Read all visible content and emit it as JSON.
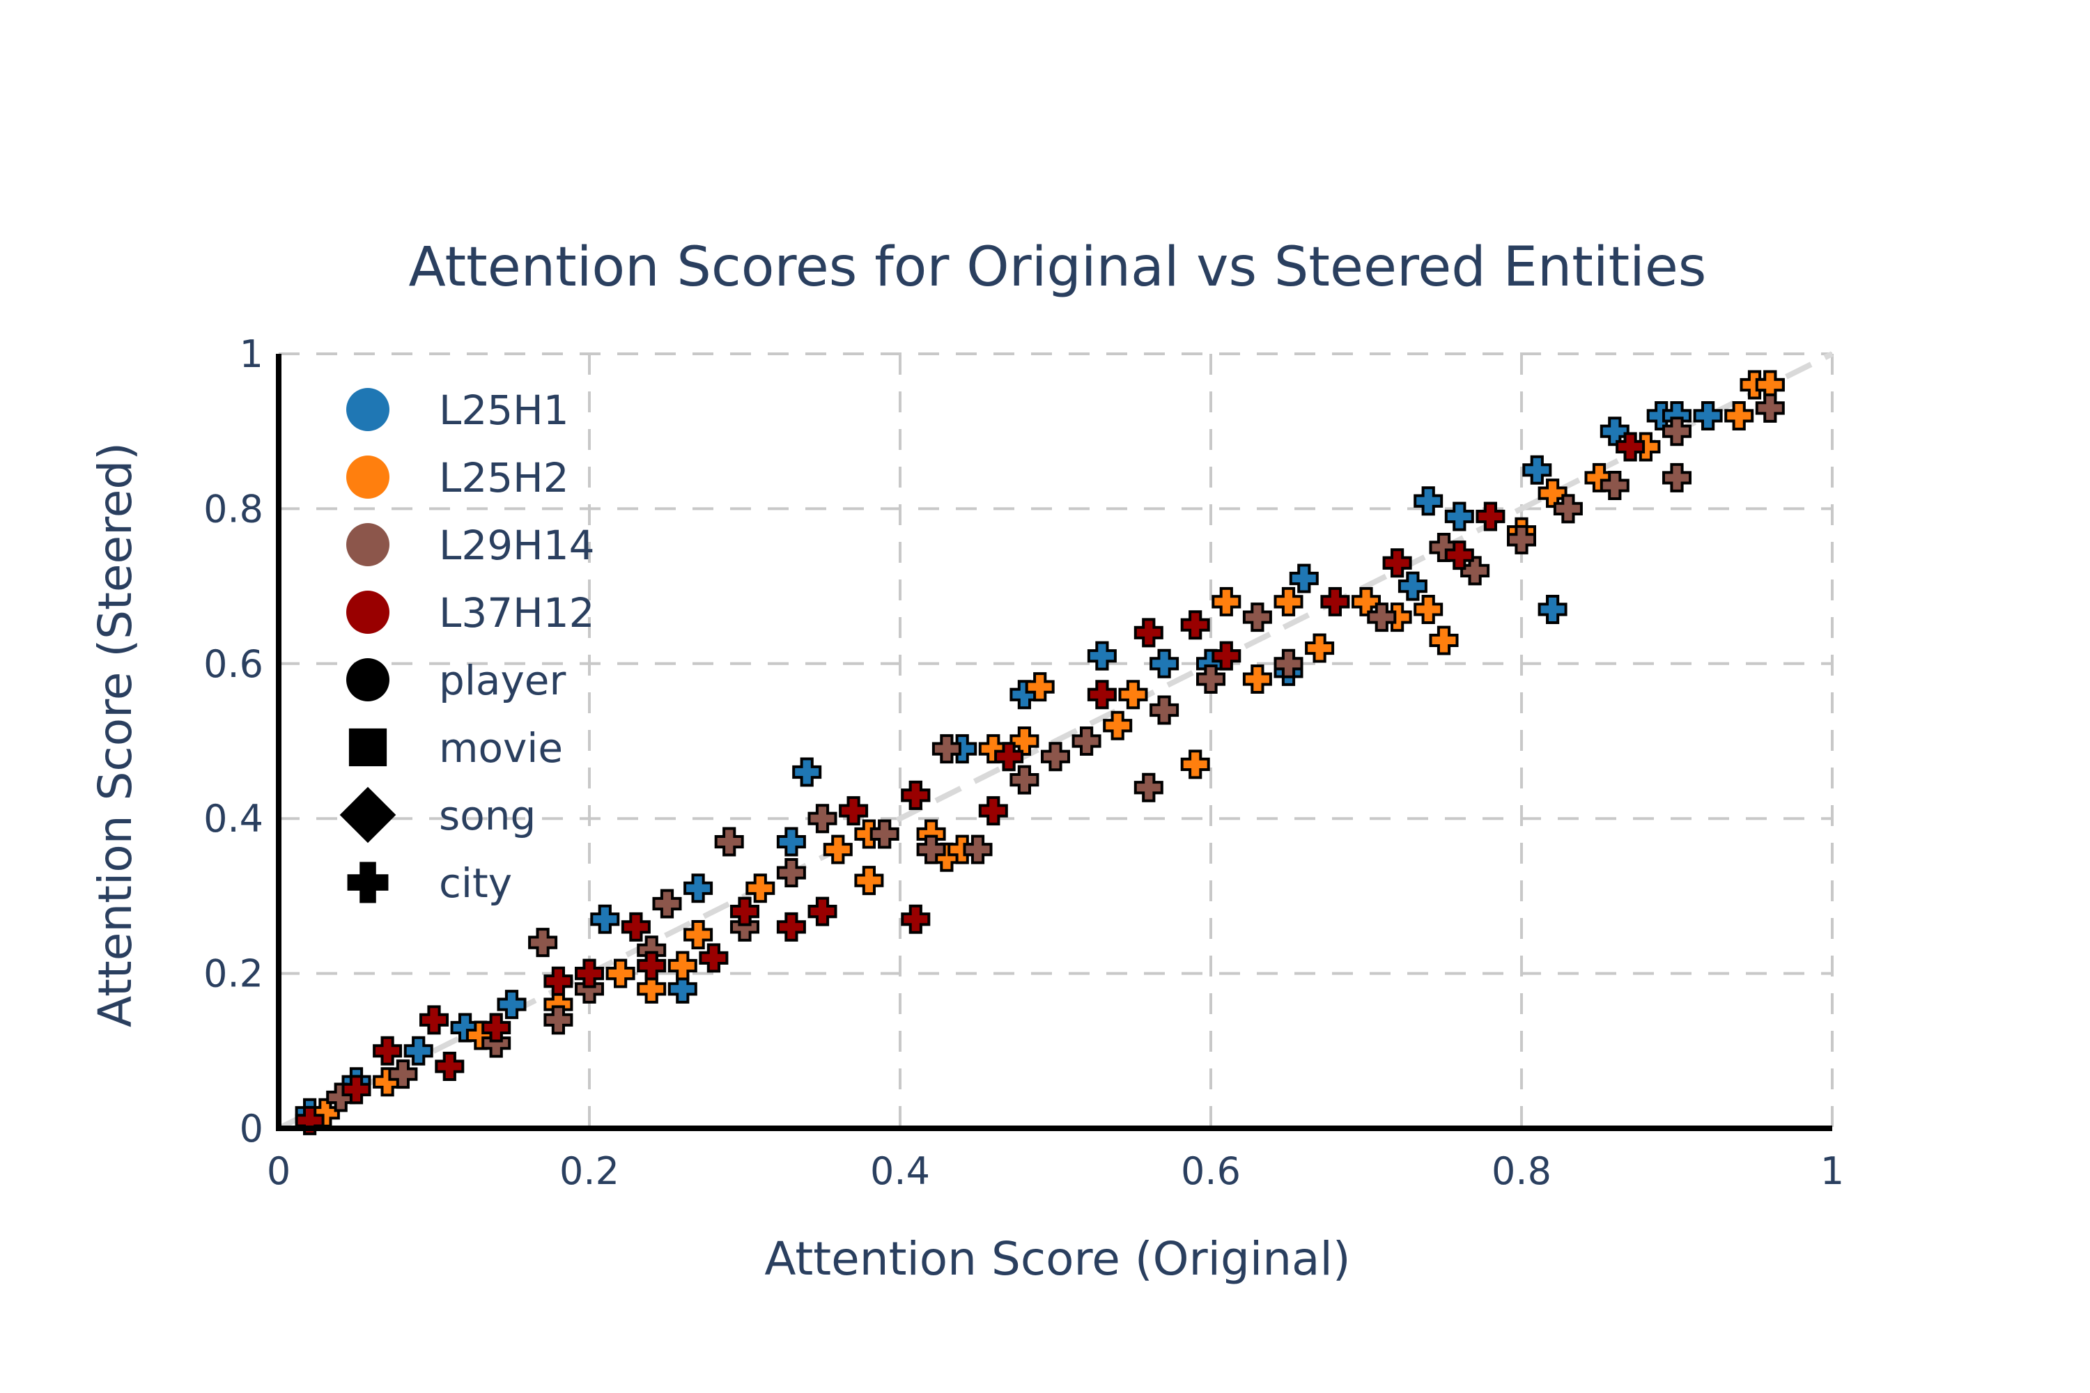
{
  "chart_data": {
    "type": "scatter",
    "title": "Attention Scores for Original vs Steered Entities",
    "xlabel": "Attention Score (Original)",
    "ylabel": "Attention Score (Steered)",
    "xlim": [
      0,
      1
    ],
    "ylim": [
      0,
      1
    ],
    "x_ticks": [
      0,
      0.2,
      0.4,
      0.6,
      0.8,
      1
    ],
    "y_ticks": [
      0,
      0.2,
      0.4,
      0.6,
      0.8,
      1
    ],
    "x_tick_labels": [
      "0",
      "0.2",
      "0.4",
      "0.6",
      "0.8",
      "1"
    ],
    "y_tick_labels": [
      "0",
      "0.2",
      "0.4",
      "0.6",
      "0.8",
      "1"
    ],
    "grid": true,
    "reference_line": {
      "x": [
        0,
        1
      ],
      "y": [
        0,
        1
      ],
      "style": "dashed",
      "color": "#d9d9d9"
    },
    "legend_position": "top-left",
    "colors": {
      "L25H1": "#1f77b4",
      "L25H2": "#ff7f0e",
      "L29H14": "#8c564b",
      "L37H12": "#990000"
    },
    "legend": {
      "heads": [
        {
          "name": "L25H1",
          "color": "#1f77b4"
        },
        {
          "name": "L25H2",
          "color": "#ff7f0e"
        },
        {
          "name": "L29H14",
          "color": "#8c564b"
        },
        {
          "name": "L37H12",
          "color": "#990000"
        }
      ],
      "types": [
        {
          "name": "player",
          "symbol": "circle"
        },
        {
          "name": "movie",
          "symbol": "square"
        },
        {
          "name": "song",
          "symbol": "diamond"
        },
        {
          "name": "city",
          "symbol": "cross"
        }
      ]
    },
    "series": [
      {
        "name": "L25H1",
        "color": "#1f77b4",
        "points": [
          [
            0.02,
            0.02,
            "player"
          ],
          [
            0.05,
            0.06,
            "movie"
          ],
          [
            0.09,
            0.1,
            "song"
          ],
          [
            0.12,
            0.13,
            "city"
          ],
          [
            0.15,
            0.16,
            "player"
          ],
          [
            0.21,
            0.27,
            "song"
          ],
          [
            0.26,
            0.18,
            "song"
          ],
          [
            0.27,
            0.31,
            "city"
          ],
          [
            0.33,
            0.37,
            "song"
          ],
          [
            0.34,
            0.46,
            "song"
          ],
          [
            0.41,
            0.43,
            "city"
          ],
          [
            0.44,
            0.49,
            "movie"
          ],
          [
            0.48,
            0.56,
            "song"
          ],
          [
            0.53,
            0.61,
            "song"
          ],
          [
            0.57,
            0.6,
            "movie"
          ],
          [
            0.6,
            0.6,
            "movie"
          ],
          [
            0.65,
            0.59,
            "player"
          ],
          [
            0.66,
            0.71,
            "player"
          ],
          [
            0.73,
            0.7,
            "player"
          ],
          [
            0.74,
            0.81,
            "song"
          ],
          [
            0.76,
            0.79,
            "movie"
          ],
          [
            0.81,
            0.85,
            "player"
          ],
          [
            0.82,
            0.67,
            "song"
          ],
          [
            0.86,
            0.9,
            "player"
          ],
          [
            0.89,
            0.92,
            "player"
          ],
          [
            0.9,
            0.92,
            "player"
          ],
          [
            0.92,
            0.92,
            "player"
          ],
          [
            0.96,
            0.96,
            "city"
          ]
        ]
      },
      {
        "name": "L25H2",
        "color": "#ff7f0e",
        "points": [
          [
            0.03,
            0.02,
            "city"
          ],
          [
            0.07,
            0.06,
            "city"
          ],
          [
            0.13,
            0.12,
            "song"
          ],
          [
            0.18,
            0.16,
            "movie"
          ],
          [
            0.22,
            0.2,
            "song"
          ],
          [
            0.24,
            0.18,
            "song"
          ],
          [
            0.26,
            0.21,
            "song"
          ],
          [
            0.27,
            0.25,
            "player"
          ],
          [
            0.31,
            0.31,
            "player"
          ],
          [
            0.36,
            0.36,
            "song"
          ],
          [
            0.38,
            0.38,
            "player"
          ],
          [
            0.38,
            0.32,
            "movie"
          ],
          [
            0.42,
            0.38,
            "song"
          ],
          [
            0.43,
            0.35,
            "song"
          ],
          [
            0.44,
            0.36,
            "city"
          ],
          [
            0.46,
            0.49,
            "player"
          ],
          [
            0.48,
            0.5,
            "player"
          ],
          [
            0.49,
            0.57,
            "player"
          ],
          [
            0.54,
            0.52,
            "song"
          ],
          [
            0.55,
            0.56,
            "player"
          ],
          [
            0.59,
            0.47,
            "movie"
          ],
          [
            0.61,
            0.68,
            "player"
          ],
          [
            0.63,
            0.58,
            "city"
          ],
          [
            0.65,
            0.68,
            "player"
          ],
          [
            0.67,
            0.62,
            "city"
          ],
          [
            0.7,
            0.68,
            "city"
          ],
          [
            0.72,
            0.66,
            "song"
          ],
          [
            0.74,
            0.67,
            "city"
          ],
          [
            0.75,
            0.63,
            "song"
          ],
          [
            0.8,
            0.77,
            "song"
          ],
          [
            0.82,
            0.82,
            "song"
          ],
          [
            0.85,
            0.84,
            "city"
          ],
          [
            0.88,
            0.88,
            "song"
          ],
          [
            0.94,
            0.92,
            "song"
          ],
          [
            0.95,
            0.96,
            "song"
          ],
          [
            0.96,
            0.96,
            "movie"
          ]
        ]
      },
      {
        "name": "L29H14",
        "color": "#8c564b",
        "points": [
          [
            0.04,
            0.04,
            "song"
          ],
          [
            0.08,
            0.07,
            "song"
          ],
          [
            0.14,
            0.11,
            "song"
          ],
          [
            0.17,
            0.24,
            "player"
          ],
          [
            0.18,
            0.14,
            "player"
          ],
          [
            0.2,
            0.18,
            "movie"
          ],
          [
            0.24,
            0.23,
            "song"
          ],
          [
            0.25,
            0.29,
            "player"
          ],
          [
            0.29,
            0.37,
            "song"
          ],
          [
            0.3,
            0.26,
            "song"
          ],
          [
            0.33,
            0.33,
            "movie"
          ],
          [
            0.35,
            0.4,
            "city"
          ],
          [
            0.39,
            0.38,
            "song"
          ],
          [
            0.42,
            0.36,
            "player"
          ],
          [
            0.43,
            0.49,
            "player"
          ],
          [
            0.45,
            0.36,
            "song"
          ],
          [
            0.48,
            0.45,
            "movie"
          ],
          [
            0.5,
            0.48,
            "song"
          ],
          [
            0.52,
            0.5,
            "city"
          ],
          [
            0.56,
            0.44,
            "song"
          ],
          [
            0.57,
            0.54,
            "song"
          ],
          [
            0.6,
            0.58,
            "movie"
          ],
          [
            0.63,
            0.66,
            "city"
          ],
          [
            0.65,
            0.6,
            "song"
          ],
          [
            0.71,
            0.66,
            "player"
          ],
          [
            0.75,
            0.75,
            "city"
          ],
          [
            0.77,
            0.72,
            "song"
          ],
          [
            0.8,
            0.76,
            "movie"
          ],
          [
            0.83,
            0.8,
            "song"
          ],
          [
            0.86,
            0.83,
            "city"
          ],
          [
            0.9,
            0.84,
            "movie"
          ],
          [
            0.9,
            0.9,
            "player"
          ],
          [
            0.96,
            0.93,
            "song"
          ]
        ]
      },
      {
        "name": "L37H12",
        "color": "#990000",
        "points": [
          [
            0.02,
            0.01,
            "city"
          ],
          [
            0.05,
            0.05,
            "movie"
          ],
          [
            0.07,
            0.1,
            "song"
          ],
          [
            0.1,
            0.14,
            "city"
          ],
          [
            0.11,
            0.08,
            "player"
          ],
          [
            0.14,
            0.13,
            "song"
          ],
          [
            0.18,
            0.19,
            "song"
          ],
          [
            0.2,
            0.2,
            "movie"
          ],
          [
            0.23,
            0.26,
            "song"
          ],
          [
            0.24,
            0.21,
            "player"
          ],
          [
            0.28,
            0.22,
            "player"
          ],
          [
            0.3,
            0.28,
            "player"
          ],
          [
            0.33,
            0.26,
            "movie"
          ],
          [
            0.35,
            0.28,
            "player"
          ],
          [
            0.37,
            0.41,
            "movie"
          ],
          [
            0.41,
            0.27,
            "song"
          ],
          [
            0.41,
            0.43,
            "city"
          ],
          [
            0.46,
            0.41,
            "player"
          ],
          [
            0.47,
            0.48,
            "player"
          ],
          [
            0.53,
            0.56,
            "song"
          ],
          [
            0.56,
            0.64,
            "song"
          ],
          [
            0.59,
            0.65,
            "song"
          ],
          [
            0.61,
            0.61,
            "song"
          ],
          [
            0.68,
            0.68,
            "movie"
          ],
          [
            0.72,
            0.73,
            "song"
          ],
          [
            0.76,
            0.74,
            "song"
          ],
          [
            0.78,
            0.79,
            "player"
          ],
          [
            0.87,
            0.88,
            "city"
          ]
        ]
      }
    ]
  }
}
